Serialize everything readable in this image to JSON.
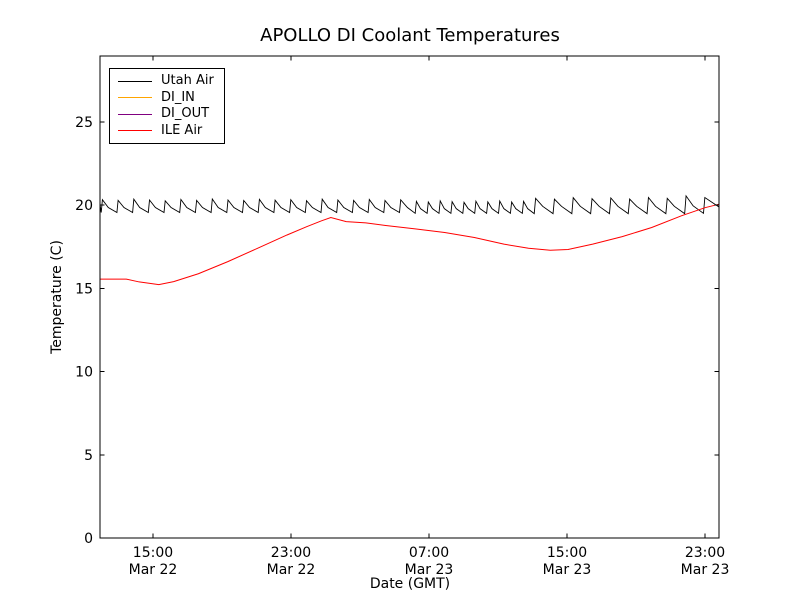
{
  "chart_data": {
    "type": "line",
    "title": "APOLLO DI Coolant Temperatures",
    "xlabel": "Date (GMT)",
    "ylabel": "Temperature (C)",
    "x_unit_note": "hours since Mar 22 00:00 GMT",
    "xlim": [
      11.93,
      47.81
    ],
    "ylim": [
      0,
      28.95
    ],
    "grid": false,
    "background": "#ffffff",
    "frame_color": "#000000",
    "legend": {
      "position": "upper-left"
    },
    "x_ticks": [
      {
        "value": 15,
        "time": "15:00",
        "date": "Mar 22"
      },
      {
        "value": 23,
        "time": "23:00",
        "date": "Mar 22"
      },
      {
        "value": 31,
        "time": "07:00",
        "date": "Mar 23"
      },
      {
        "value": 39,
        "time": "15:00",
        "date": "Mar 23"
      },
      {
        "value": 47,
        "time": "23:00",
        "date": "Mar 23"
      }
    ],
    "y_ticks": [
      {
        "value": 0,
        "label": "0"
      },
      {
        "value": 5,
        "label": "5"
      },
      {
        "value": 10,
        "label": "10"
      },
      {
        "value": 15,
        "label": "15"
      },
      {
        "value": 20,
        "label": "20"
      },
      {
        "value": 25,
        "label": "25"
      }
    ],
    "series": [
      {
        "name": "Utah Air",
        "color": "#000000",
        "width": 0.9,
        "points": [
          [
            11.93,
            20.05
          ],
          [
            12.0,
            19.55
          ],
          [
            12.07,
            20.32
          ],
          [
            12.41,
            19.85
          ],
          [
            12.91,
            19.55
          ],
          [
            12.98,
            20.28
          ],
          [
            13.32,
            19.85
          ],
          [
            13.82,
            19.55
          ],
          [
            13.89,
            20.35
          ],
          [
            14.23,
            19.85
          ],
          [
            14.73,
            19.55
          ],
          [
            14.8,
            20.3
          ],
          [
            15.14,
            19.85
          ],
          [
            15.64,
            19.55
          ],
          [
            15.71,
            20.25
          ],
          [
            16.05,
            19.85
          ],
          [
            16.55,
            19.55
          ],
          [
            16.62,
            20.33
          ],
          [
            16.96,
            19.85
          ],
          [
            17.46,
            19.55
          ],
          [
            17.53,
            20.28
          ],
          [
            17.87,
            19.85
          ],
          [
            18.37,
            19.55
          ],
          [
            18.44,
            20.36
          ],
          [
            18.78,
            19.85
          ],
          [
            19.28,
            19.55
          ],
          [
            19.35,
            20.3
          ],
          [
            19.69,
            19.85
          ],
          [
            20.19,
            19.55
          ],
          [
            20.26,
            20.27
          ],
          [
            20.6,
            19.85
          ],
          [
            21.1,
            19.55
          ],
          [
            21.17,
            20.34
          ],
          [
            21.51,
            19.85
          ],
          [
            22.01,
            19.55
          ],
          [
            22.08,
            20.29
          ],
          [
            22.42,
            19.85
          ],
          [
            22.92,
            19.55
          ],
          [
            22.99,
            20.32
          ],
          [
            23.33,
            19.85
          ],
          [
            23.83,
            19.55
          ],
          [
            23.9,
            20.26
          ],
          [
            24.24,
            19.85
          ],
          [
            24.74,
            19.55
          ],
          [
            24.81,
            20.35
          ],
          [
            25.15,
            19.85
          ],
          [
            25.65,
            19.55
          ],
          [
            25.72,
            20.3
          ],
          [
            26.06,
            19.85
          ],
          [
            26.56,
            19.55
          ],
          [
            26.63,
            20.28
          ],
          [
            26.97,
            19.85
          ],
          [
            27.47,
            19.55
          ],
          [
            27.54,
            20.33
          ],
          [
            27.88,
            19.85
          ],
          [
            28.38,
            19.55
          ],
          [
            28.45,
            20.27
          ],
          [
            28.79,
            19.85
          ],
          [
            29.29,
            19.55
          ],
          [
            29.36,
            20.31
          ],
          [
            29.75,
            19.85
          ],
          [
            30.2,
            19.5
          ],
          [
            30.27,
            20.22
          ],
          [
            30.51,
            19.78
          ],
          [
            30.89,
            19.5
          ],
          [
            30.96,
            20.18
          ],
          [
            31.2,
            19.78
          ],
          [
            31.58,
            19.5
          ],
          [
            31.65,
            20.25
          ],
          [
            31.89,
            19.78
          ],
          [
            32.27,
            19.5
          ],
          [
            32.34,
            20.2
          ],
          [
            32.58,
            19.78
          ],
          [
            32.96,
            19.5
          ],
          [
            33.03,
            20.16
          ],
          [
            33.27,
            19.78
          ],
          [
            33.65,
            19.5
          ],
          [
            33.72,
            20.23
          ],
          [
            33.96,
            19.78
          ],
          [
            34.34,
            19.5
          ],
          [
            34.41,
            20.19
          ],
          [
            34.65,
            19.78
          ],
          [
            35.03,
            19.5
          ],
          [
            35.1,
            20.24
          ],
          [
            35.34,
            19.78
          ],
          [
            35.72,
            19.5
          ],
          [
            35.79,
            20.18
          ],
          [
            36.03,
            19.78
          ],
          [
            36.41,
            19.5
          ],
          [
            36.48,
            20.22
          ],
          [
            36.72,
            19.78
          ],
          [
            37.1,
            19.48
          ],
          [
            37.18,
            20.4
          ],
          [
            37.59,
            19.92
          ],
          [
            38.19,
            19.48
          ],
          [
            38.27,
            20.35
          ],
          [
            38.68,
            19.92
          ],
          [
            39.28,
            19.48
          ],
          [
            39.36,
            20.44
          ],
          [
            39.77,
            19.92
          ],
          [
            40.37,
            19.48
          ],
          [
            40.45,
            20.38
          ],
          [
            40.86,
            19.92
          ],
          [
            41.46,
            19.48
          ],
          [
            41.54,
            20.42
          ],
          [
            41.95,
            19.92
          ],
          [
            42.55,
            19.48
          ],
          [
            42.63,
            20.36
          ],
          [
            43.04,
            19.92
          ],
          [
            43.64,
            19.48
          ],
          [
            43.72,
            20.45
          ],
          [
            44.13,
            19.92
          ],
          [
            44.73,
            19.48
          ],
          [
            44.81,
            20.4
          ],
          [
            45.22,
            19.92
          ],
          [
            45.82,
            19.48
          ],
          [
            45.9,
            20.55
          ],
          [
            46.31,
            19.95
          ],
          [
            46.91,
            19.5
          ],
          [
            46.99,
            20.45
          ],
          [
            47.81,
            19.88
          ]
        ]
      },
      {
        "name": "DI_IN",
        "color": "#ffa500",
        "width": 1,
        "points": [
          [
            11.93,
            0.0
          ],
          [
            47.81,
            0.0
          ]
        ]
      },
      {
        "name": "DI_OUT",
        "color": "#800080",
        "width": 1,
        "points": [
          [
            11.93,
            0.0
          ],
          [
            47.81,
            0.0
          ]
        ]
      },
      {
        "name": "ILE Air",
        "color": "#ff0000",
        "width": 1,
        "points": [
          [
            11.93,
            15.55
          ],
          [
            13.46,
            15.55
          ],
          [
            14.2,
            15.38
          ],
          [
            15.34,
            15.22
          ],
          [
            16.2,
            15.4
          ],
          [
            17.63,
            15.87
          ],
          [
            19.34,
            16.6
          ],
          [
            21.06,
            17.4
          ],
          [
            22.77,
            18.2
          ],
          [
            23.91,
            18.7
          ],
          [
            24.77,
            19.05
          ],
          [
            25.31,
            19.25
          ],
          [
            26.2,
            19.0
          ],
          [
            27.34,
            18.93
          ],
          [
            28.49,
            18.77
          ],
          [
            30.2,
            18.57
          ],
          [
            31.91,
            18.35
          ],
          [
            33.63,
            18.05
          ],
          [
            35.34,
            17.65
          ],
          [
            36.77,
            17.4
          ],
          [
            38.03,
            17.28
          ],
          [
            39.06,
            17.33
          ],
          [
            40.49,
            17.65
          ],
          [
            42.2,
            18.1
          ],
          [
            43.91,
            18.65
          ],
          [
            45.63,
            19.35
          ],
          [
            47.0,
            19.84
          ],
          [
            47.81,
            20.05
          ]
        ]
      }
    ]
  }
}
